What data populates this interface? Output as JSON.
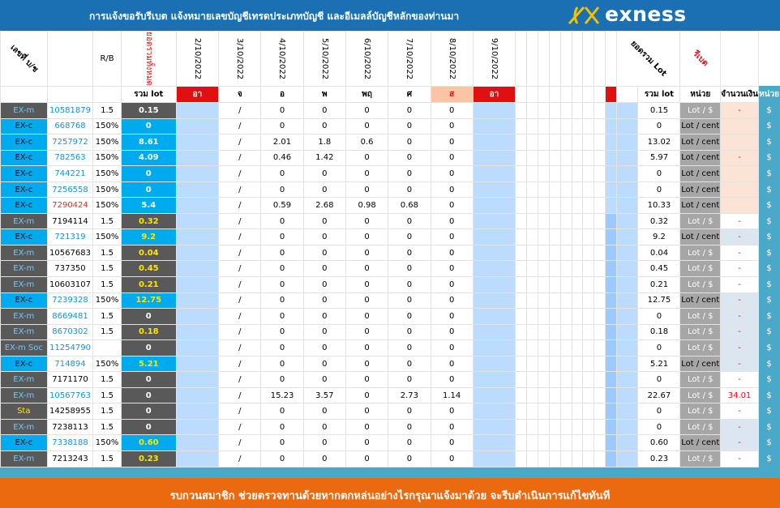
{
  "banner": {
    "text": "การแจ้งขอรับรีเบต  แจ้งหมายเลขบัญชีเทรดประเภทบัญชี และอีเมลล์บัญชีหลักของท่านมา",
    "logo_text": "exness",
    "logo_icon": "exness-ex-mark-icon"
  },
  "header": {
    "account_no": "เลขที่ บ/ช",
    "rb": "R/B",
    "total_past": "ยอดรวมทั้งหมด",
    "dates": [
      "2/10/2022",
      "3/10/2022",
      "4/10/2022",
      "5/10/2022",
      "6/10/2022",
      "7/10/2022",
      "8/10/2022",
      "9/10/2022"
    ],
    "total_lot_diag": "ยอดรวม Lot",
    "rebate_diag": "รีเบต",
    "total_lot": "รวม lot",
    "days": [
      "อา",
      "จ",
      "อ",
      "พ",
      "พฤ",
      "ศ",
      "ส",
      "อา"
    ],
    "total_lot2": "รวม lot",
    "unit": "หน่วย",
    "amount": "จำนวนเงิน",
    "unit2": "หน่วย"
  },
  "rows": [
    {
      "type": "EX-m",
      "id": "10581879",
      "rb": "1.5",
      "lot": "0.15",
      "d1": "/",
      "v": [
        "0",
        "0",
        "0",
        "0",
        "0"
      ],
      "sum": "0.15",
      "unit": "Lot / $",
      "amt": "-",
      "cur": "$"
    },
    {
      "type": "EX-c",
      "id": "668768",
      "rb": "150%",
      "lot": "0",
      "d1": "/",
      "v": [
        "0",
        "0",
        "0",
        "0",
        "0"
      ],
      "sum": "0",
      "unit": "Lot / cent",
      "amt": "",
      "cur": "$"
    },
    {
      "type": "EX-c",
      "id": "7257972",
      "rb": "150%",
      "lot": "8.61",
      "d1": "/",
      "v": [
        "2.01",
        "1.8",
        "0.6",
        "0",
        "0"
      ],
      "sum": "13.02",
      "unit": "Lot / cent",
      "amt": "",
      "cur": "$"
    },
    {
      "type": "EX-c",
      "id": "782563",
      "rb": "150%",
      "lot": "4.09",
      "d1": "/",
      "v": [
        "0.46",
        "1.42",
        "0",
        "0",
        "0"
      ],
      "sum": "5.97",
      "unit": "Lot / cent",
      "amt": "-",
      "cur": "$"
    },
    {
      "type": "EX-c",
      "id": "744221",
      "rb": "150%",
      "lot": "0",
      "d1": "/",
      "v": [
        "0",
        "0",
        "0",
        "0",
        "0"
      ],
      "sum": "0",
      "unit": "Lot / cent",
      "amt": "",
      "cur": "$"
    },
    {
      "type": "EX-c",
      "id": "7256558",
      "rb": "150%",
      "lot": "0",
      "d1": "/",
      "v": [
        "0",
        "0",
        "0",
        "0",
        "0"
      ],
      "sum": "0",
      "unit": "Lot / cent",
      "amt": "",
      "cur": "$"
    },
    {
      "type": "EX-c",
      "id": "7290424",
      "rb": "150%",
      "lot": "5.4",
      "d1": "/",
      "v": [
        "0.59",
        "2.68",
        "0.98",
        "0.68",
        "0"
      ],
      "sum": "10.33",
      "unit": "Lot / cent",
      "amt": "",
      "cur": "$"
    },
    {
      "type": "EX-m",
      "id": "7194114",
      "rb": "1.5",
      "lot": "0.32",
      "d1": "/",
      "v": [
        "0",
        "0",
        "0",
        "0",
        "0"
      ],
      "sum": "0.32",
      "unit": "Lot / $",
      "amt": "-",
      "cur": "$"
    },
    {
      "type": "EX-c",
      "id": "721319",
      "rb": "150%",
      "lot": "9.2",
      "d1": "/",
      "v": [
        "0",
        "0",
        "0",
        "0",
        "0"
      ],
      "sum": "9.2",
      "unit": "Lot / cent",
      "amt": "-",
      "cur": "$"
    },
    {
      "type": "EX-m",
      "id": "10567683",
      "rb": "1.5",
      "lot": "0.04",
      "d1": "/",
      "v": [
        "0",
        "0",
        "0",
        "0",
        "0"
      ],
      "sum": "0.04",
      "unit": "Lot / $",
      "amt": "-",
      "cur": "$"
    },
    {
      "type": "EX-m",
      "id": "737350",
      "rb": "1.5",
      "lot": "0.45",
      "d1": "/",
      "v": [
        "0",
        "0",
        "0",
        "0",
        "0"
      ],
      "sum": "0.45",
      "unit": "Lot / $",
      "amt": "-",
      "cur": "$"
    },
    {
      "type": "EX-m",
      "id": "10603107",
      "rb": "1.5",
      "lot": "0.21",
      "d1": "/",
      "v": [
        "0",
        "0",
        "0",
        "0",
        "0"
      ],
      "sum": "0.21",
      "unit": "Lot / $",
      "amt": "-",
      "cur": "$"
    },
    {
      "type": "EX-c",
      "id": "7239328",
      "rb": "150%",
      "lot": "12.75",
      "d1": "/",
      "v": [
        "0",
        "0",
        "0",
        "0",
        "0"
      ],
      "sum": "12.75",
      "unit": "Lot / cent",
      "amt": "-",
      "cur": "$"
    },
    {
      "type": "EX-m",
      "id": "8669481",
      "rb": "1.5",
      "lot": "0",
      "d1": "/",
      "v": [
        "0",
        "0",
        "0",
        "0",
        "0"
      ],
      "sum": "0",
      "unit": "Lot / $",
      "amt": "-",
      "cur": "$"
    },
    {
      "type": "EX-m",
      "id": "8670302",
      "rb": "1.5",
      "lot": "0.18",
      "d1": "/",
      "v": [
        "0",
        "0",
        "0",
        "0",
        "0"
      ],
      "sum": "0.18",
      "unit": "Lot / $",
      "amt": "-",
      "cur": "$"
    },
    {
      "type": "EX-m Soc",
      "id": "11254790",
      "rb": "",
      "lot": "0",
      "d1": "/",
      "v": [
        "0",
        "0",
        "0",
        "0",
        "0"
      ],
      "sum": "0",
      "unit": "Lot / $",
      "amt": "-",
      "cur": "$"
    },
    {
      "type": "EX-c",
      "id": "714894",
      "rb": "150%",
      "lot": "5.21",
      "d1": "/",
      "v": [
        "0",
        "0",
        "0",
        "0",
        "0"
      ],
      "sum": "5.21",
      "unit": "Lot / cent",
      "amt": "-",
      "cur": "$"
    },
    {
      "type": "EX-m",
      "id": "7171170",
      "rb": "1.5",
      "lot": "0",
      "d1": "/",
      "v": [
        "0",
        "0",
        "0",
        "0",
        "0"
      ],
      "sum": "0",
      "unit": "Lot / $",
      "amt": "-",
      "cur": "$"
    },
    {
      "type": "EX-m",
      "id": "10567763",
      "rb": "1.5",
      "lot": "0",
      "d1": "/",
      "v": [
        "15.23",
        "3.57",
        "0",
        "2.73",
        "1.14"
      ],
      "sum": "22.67",
      "unit": "Lot / $",
      "amt": "34.01",
      "cur": "$"
    },
    {
      "type": "Sta",
      "id": "14258955",
      "rb": "1.5",
      "lot": "0",
      "d1": "/",
      "v": [
        "0",
        "0",
        "0",
        "0",
        "0"
      ],
      "sum": "0",
      "unit": "Lot / $",
      "amt": "-",
      "cur": "$"
    },
    {
      "type": "EX-m",
      "id": "7238113",
      "rb": "1.5",
      "lot": "0",
      "d1": "/",
      "v": [
        "0",
        "0",
        "0",
        "0",
        "0"
      ],
      "sum": "0",
      "unit": "Lot / $",
      "amt": "-",
      "cur": "$"
    },
    {
      "type": "EX-c",
      "id": "7338188",
      "rb": "150%",
      "lot": "0.60",
      "d1": "/",
      "v": [
        "0",
        "0",
        "0",
        "0",
        "0"
      ],
      "sum": "0.60",
      "unit": "Lot / cent",
      "amt": "-",
      "cur": "$"
    },
    {
      "type": "EX-m",
      "id": "7213243",
      "rb": "1.5",
      "lot": "0.23",
      "d1": "/",
      "v": [
        "0",
        "0",
        "0",
        "0",
        "0"
      ],
      "sum": "0.23",
      "unit": "Lot / $",
      "amt": "-",
      "cur": "$"
    }
  ],
  "footer": {
    "text": "รบกวนสมาชิก ช่วยตรวจทานด้วยหากตกหล่นอย่างไรกรุณาแจ้งมาด้วย จะรีบดำเนินการแก้ไขทันที"
  },
  "colors": {
    "banner": "#1b6fb3",
    "footer": "#ec6a0f",
    "accent_red": "#e01010",
    "ex_c": "#00aaee",
    "ex_m": "#595959"
  }
}
